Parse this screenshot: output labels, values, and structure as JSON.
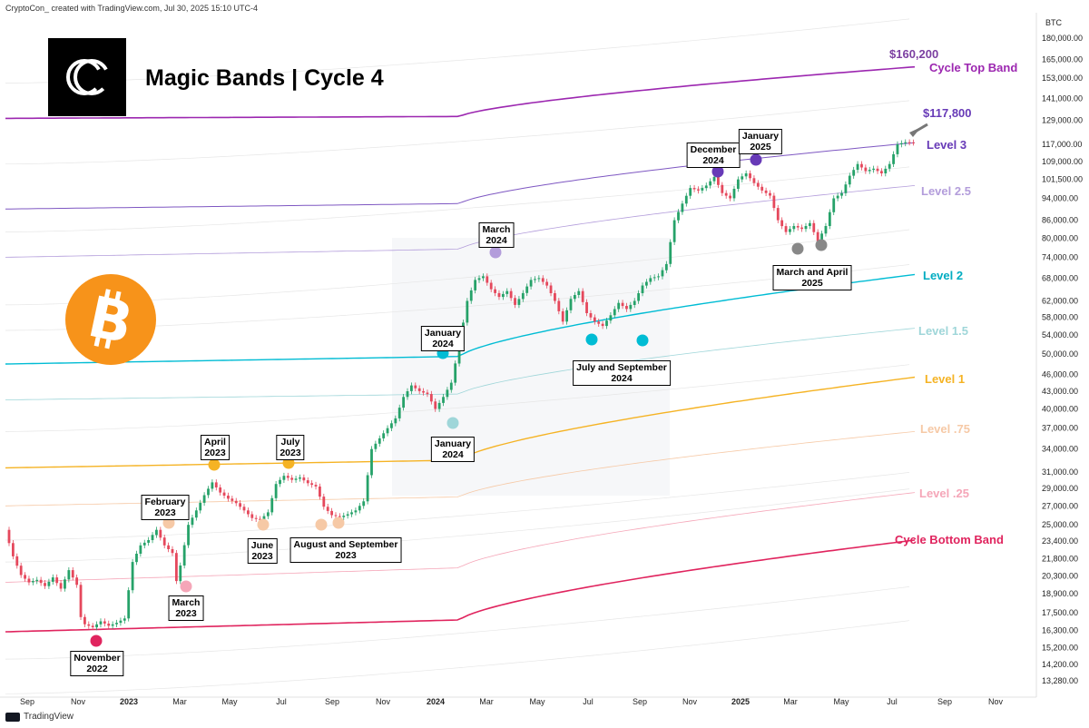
{
  "header": {
    "attribution": "CryptoCon_ created with TradingView.com, Jul 30, 2025 15:10 UTC-4"
  },
  "footer": {
    "brand": "TradingView"
  },
  "chart_data": {
    "type": "line",
    "title": "Magic Bands | Cycle 4",
    "logo_icon": "cryptocon-logo-icon",
    "coin_icon": "bitcoin-icon",
    "y_axis": {
      "label": "BTC",
      "scale": "log",
      "ticks": [
        "180,000.00",
        "165,000.00",
        "153,000.00",
        "141,000.00",
        "129,000.00",
        "117,000.00",
        "109,000.00",
        "101,500.00",
        "94,000.00",
        "86,000.00",
        "80,000.00",
        "74,000.00",
        "68,000.00",
        "62,000.00",
        "58,000.00",
        "54,000.00",
        "50,000.00",
        "46,000.00",
        "43,000.00",
        "40,000.00",
        "37,000.00",
        "34,000.00",
        "31,000.00",
        "29,000.00",
        "27,000.00",
        "25,000.00",
        "23,400.00",
        "21,800.00",
        "20,300.00",
        "18,900.00",
        "17,500.00",
        "16,300.00",
        "15,200.00",
        "14,200.00",
        "13,280.00"
      ]
    },
    "x_axis": {
      "ticks": [
        "Sep",
        "Nov",
        "2023",
        "Mar",
        "May",
        "Jul",
        "Sep",
        "Nov",
        "2024",
        "Mar",
        "May",
        "Jul",
        "Sep",
        "Nov",
        "2025",
        "Mar",
        "May",
        "Jul",
        "Sep",
        "Nov"
      ]
    },
    "bands": [
      {
        "name": "Cycle Top Band",
        "color": "#9c27b0",
        "end_value": 160200,
        "price_label": "$160,200"
      },
      {
        "name": "Level 3",
        "color": "#7e57c2",
        "end_value": 117800,
        "price_label": "$117,800"
      },
      {
        "name": "Level 2.5",
        "color": "#b39ddb"
      },
      {
        "name": "Level 2",
        "color": "#00bcd4",
        "end_value": 69000
      },
      {
        "name": "Level 1.5",
        "color": "#9fd6d9"
      },
      {
        "name": "Level 1",
        "color": "#f5b324",
        "end_value": 45500
      },
      {
        "name": "Level .75",
        "color": "#f6c9a6"
      },
      {
        "name": "Level .25",
        "color": "#f5a6b8"
      },
      {
        "name": "Cycle Bottom Band",
        "color": "#e0245e",
        "end_value": 23500
      }
    ],
    "series": [
      {
        "values": [
          [
            0,
            24500
          ],
          [
            2,
            22000
          ],
          [
            4,
            20400
          ],
          [
            6,
            19800
          ],
          [
            8,
            20000
          ],
          [
            10,
            19500
          ],
          [
            12,
            20200
          ],
          [
            14,
            19300
          ],
          [
            16,
            20800
          ],
          [
            18,
            19600
          ],
          [
            19,
            17200
          ],
          [
            20,
            16700
          ],
          [
            22,
            16500
          ],
          [
            24,
            16900
          ],
          [
            26,
            16600
          ],
          [
            28,
            16800
          ],
          [
            30,
            17100
          ],
          [
            32,
            21500
          ],
          [
            34,
            23000
          ],
          [
            36,
            23500
          ],
          [
            38,
            24500
          ],
          [
            40,
            23000
          ],
          [
            42,
            22300
          ],
          [
            43,
            19900
          ],
          [
            44,
            21200
          ],
          [
            46,
            25000
          ],
          [
            48,
            26500
          ],
          [
            50,
            28200
          ],
          [
            52,
            29700
          ],
          [
            54,
            28500
          ],
          [
            56,
            27800
          ],
          [
            58,
            27300
          ],
          [
            60,
            26500
          ],
          [
            62,
            25700
          ],
          [
            64,
            25500
          ],
          [
            66,
            26300
          ],
          [
            68,
            29500
          ],
          [
            70,
            30500
          ],
          [
            72,
            30000
          ],
          [
            74,
            30300
          ],
          [
            76,
            29600
          ],
          [
            78,
            29200
          ],
          [
            80,
            26900
          ],
          [
            82,
            26000
          ],
          [
            84,
            25800
          ],
          [
            86,
            26100
          ],
          [
            88,
            26500
          ],
          [
            90,
            27500
          ],
          [
            92,
            34000
          ],
          [
            94,
            35500
          ],
          [
            96,
            37000
          ],
          [
            98,
            38500
          ],
          [
            100,
            42000
          ],
          [
            102,
            44000
          ],
          [
            104,
            43000
          ],
          [
            106,
            42500
          ],
          [
            108,
            40000
          ],
          [
            110,
            42000
          ],
          [
            112,
            44500
          ],
          [
            114,
            52000
          ],
          [
            116,
            62000
          ],
          [
            118,
            67500
          ],
          [
            120,
            68500
          ],
          [
            122,
            65000
          ],
          [
            124,
            63000
          ],
          [
            126,
            64500
          ],
          [
            128,
            61000
          ],
          [
            130,
            64000
          ],
          [
            132,
            67500
          ],
          [
            134,
            68000
          ],
          [
            136,
            66000
          ],
          [
            138,
            62000
          ],
          [
            140,
            57000
          ],
          [
            142,
            62500
          ],
          [
            144,
            64500
          ],
          [
            146,
            59000
          ],
          [
            148,
            57000
          ],
          [
            150,
            56000
          ],
          [
            152,
            58500
          ],
          [
            154,
            61500
          ],
          [
            156,
            60000
          ],
          [
            158,
            62000
          ],
          [
            160,
            66000
          ],
          [
            162,
            68000
          ],
          [
            164,
            68500
          ],
          [
            166,
            72000
          ],
          [
            168,
            86000
          ],
          [
            170,
            92000
          ],
          [
            172,
            98000
          ],
          [
            174,
            97000
          ],
          [
            176,
            99000
          ],
          [
            178,
            102500
          ],
          [
            180,
            96000
          ],
          [
            182,
            94000
          ],
          [
            184,
            101500
          ],
          [
            186,
            104000
          ],
          [
            188,
            100000
          ],
          [
            190,
            97000
          ],
          [
            192,
            95000
          ],
          [
            194,
            86000
          ],
          [
            196,
            82000
          ],
          [
            198,
            84000
          ],
          [
            200,
            83000
          ],
          [
            202,
            85000
          ],
          [
            204,
            79000
          ],
          [
            206,
            84000
          ],
          [
            208,
            94000
          ],
          [
            210,
            96000
          ],
          [
            212,
            103000
          ],
          [
            214,
            108000
          ],
          [
            216,
            105000
          ],
          [
            218,
            106000
          ],
          [
            220,
            104000
          ],
          [
            222,
            108000
          ],
          [
            224,
            117000
          ],
          [
            226,
            118000
          ],
          [
            228,
            117800
          ]
        ]
      }
    ],
    "annotations": [
      {
        "text": "November\n2022",
        "marker_color": "#e0245e"
      },
      {
        "text": "February\n2023",
        "marker_color": "#f6c9a6"
      },
      {
        "text": "March\n2023",
        "marker_color": "#f5a6b8"
      },
      {
        "text": "April\n2023",
        "marker_color": "#f5b324"
      },
      {
        "text": "June\n2023",
        "marker_color": "#f6c9a6"
      },
      {
        "text": "July\n2023",
        "marker_color": "#f5b324"
      },
      {
        "text": "August and September\n2023",
        "marker_color": "#f6c9a6"
      },
      {
        "text": "January\n2024",
        "marker_color": "#00bcd4"
      },
      {
        "text": "January\n2024",
        "marker_color": "#9fd6d9"
      },
      {
        "text": "March\n2024",
        "marker_color": "#b39ddb"
      },
      {
        "text": "July and September\n2024",
        "marker_color": "#00bcd4"
      },
      {
        "text": "December\n2024",
        "marker_color": "#673ab7"
      },
      {
        "text": "January\n2025",
        "marker_color": "#673ab7"
      },
      {
        "text": "March and April\n2025",
        "marker_color": "#888888"
      }
    ]
  }
}
